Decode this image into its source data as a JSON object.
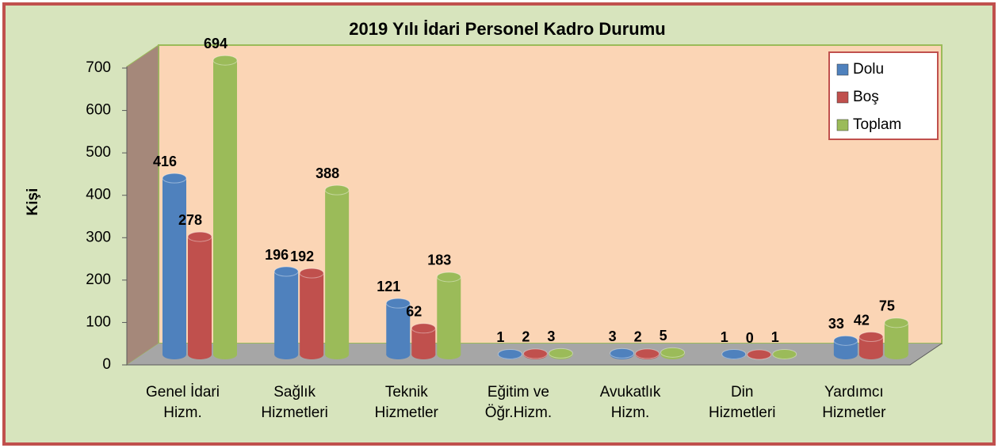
{
  "chart_data": {
    "type": "bar",
    "title": "2019 Yılı İdari Personel Kadro Durumu",
    "y_label": "Kişi",
    "categories": [
      "Genel İdari\nHizm.",
      "Sağlık\nHizmetleri",
      "Teknik\nHizmetler",
      "Eğitim ve\nÖğr.Hizm.",
      "Avukatlık\nHizm.",
      "Din\nHizmetleri",
      "Yardımcı\nHizmetler"
    ],
    "series": [
      {
        "name": "Dolu",
        "color": "#4f81bd",
        "values": [
          416,
          196,
          121,
          1,
          3,
          1,
          33
        ]
      },
      {
        "name": "Boş",
        "color": "#c0504d",
        "values": [
          278,
          192,
          62,
          2,
          2,
          0,
          42
        ]
      },
      {
        "name": "Toplam",
        "color": "#9bbb59",
        "values": [
          694,
          388,
          183,
          3,
          5,
          1,
          75
        ]
      }
    ],
    "ylim": [
      0,
      700
    ],
    "yticks": [
      0,
      100,
      200,
      300,
      400,
      500,
      600,
      700
    ],
    "legend": "upper right"
  }
}
